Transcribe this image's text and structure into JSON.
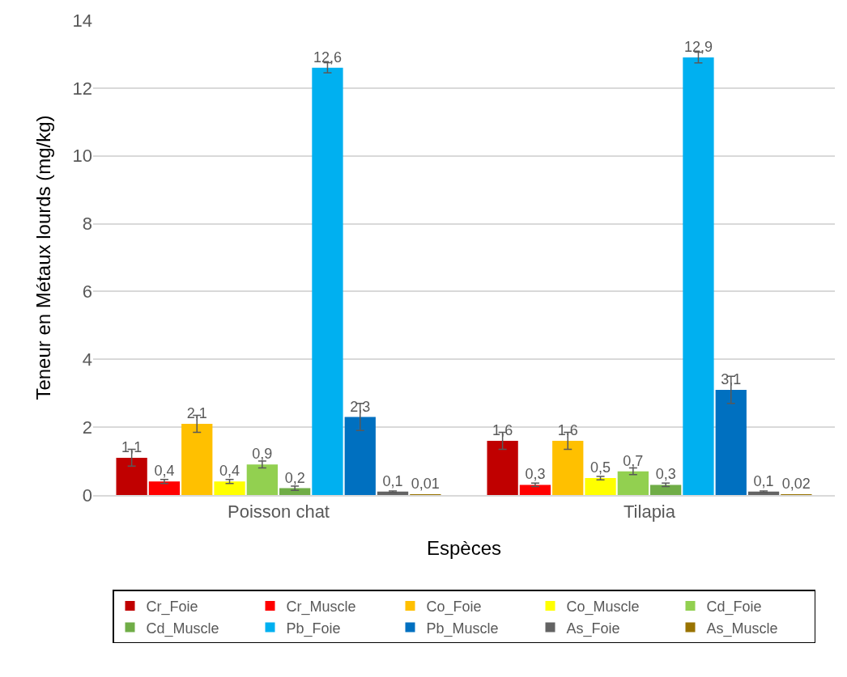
{
  "chart_data": {
    "type": "bar",
    "xlabel": "Espèces",
    "ylabel": "Teneur en Métaux lourds (mg/kg)",
    "categories": [
      "Poisson chat",
      "Tilapia"
    ],
    "series": [
      {
        "name": "Cr_Foie",
        "color": "#c00000",
        "values": [
          1.1,
          1.6
        ],
        "errors": [
          0.25,
          0.25
        ],
        "value_labels": [
          "1,1",
          "1,6"
        ]
      },
      {
        "name": "Cr_Muscle",
        "color": "#ff0000",
        "values": [
          0.4,
          0.3
        ],
        "errors": [
          0.06,
          0.05
        ],
        "value_labels": [
          "0,4",
          "0,3"
        ]
      },
      {
        "name": "Co_Foie",
        "color": "#ffc000",
        "values": [
          2.1,
          1.6
        ],
        "errors": [
          0.25,
          0.25
        ],
        "value_labels": [
          "2,1",
          "1,6"
        ]
      },
      {
        "name": "Co_Muscle",
        "color": "#ffff00",
        "values": [
          0.4,
          0.5
        ],
        "errors": [
          0.06,
          0.05
        ],
        "value_labels": [
          "0,4",
          "0,5"
        ]
      },
      {
        "name": "Cd_Foie",
        "color": "#92d050",
        "values": [
          0.9,
          0.7
        ],
        "errors": [
          0.1,
          0.1
        ],
        "value_labels": [
          "0,9",
          "0,7"
        ]
      },
      {
        "name": "Cd_Muscle",
        "color": "#70ad47",
        "values": [
          0.2,
          0.3
        ],
        "errors": [
          0.06,
          0.05
        ],
        "value_labels": [
          "0,2",
          "0,3"
        ]
      },
      {
        "name": "Pb_Foie",
        "color": "#00b0f0",
        "values": [
          12.6,
          12.9
        ],
        "errors": [
          0.15,
          0.16
        ],
        "value_labels": [
          "12,6",
          "12,9"
        ]
      },
      {
        "name": "Pb_Muscle",
        "color": "#0070c0",
        "values": [
          2.3,
          3.1
        ],
        "errors": [
          0.4,
          0.4
        ],
        "value_labels": [
          "2,3",
          "3,1"
        ]
      },
      {
        "name": "As_Foie",
        "color": "#636363",
        "values": [
          0.1,
          0.1
        ],
        "errors": [
          0.02,
          0.02
        ],
        "value_labels": [
          "0,1",
          "0,1"
        ]
      },
      {
        "name": "As_Muscle",
        "color": "#997300",
        "values": [
          0.01,
          0.02
        ],
        "value_labels": [
          "0,01",
          "0,02"
        ]
      }
    ],
    "ylim": [
      0,
      14
    ],
    "yticks": [
      0,
      2,
      4,
      6,
      8,
      10,
      12,
      14
    ],
    "grid": "y",
    "legend": "bottom"
  }
}
